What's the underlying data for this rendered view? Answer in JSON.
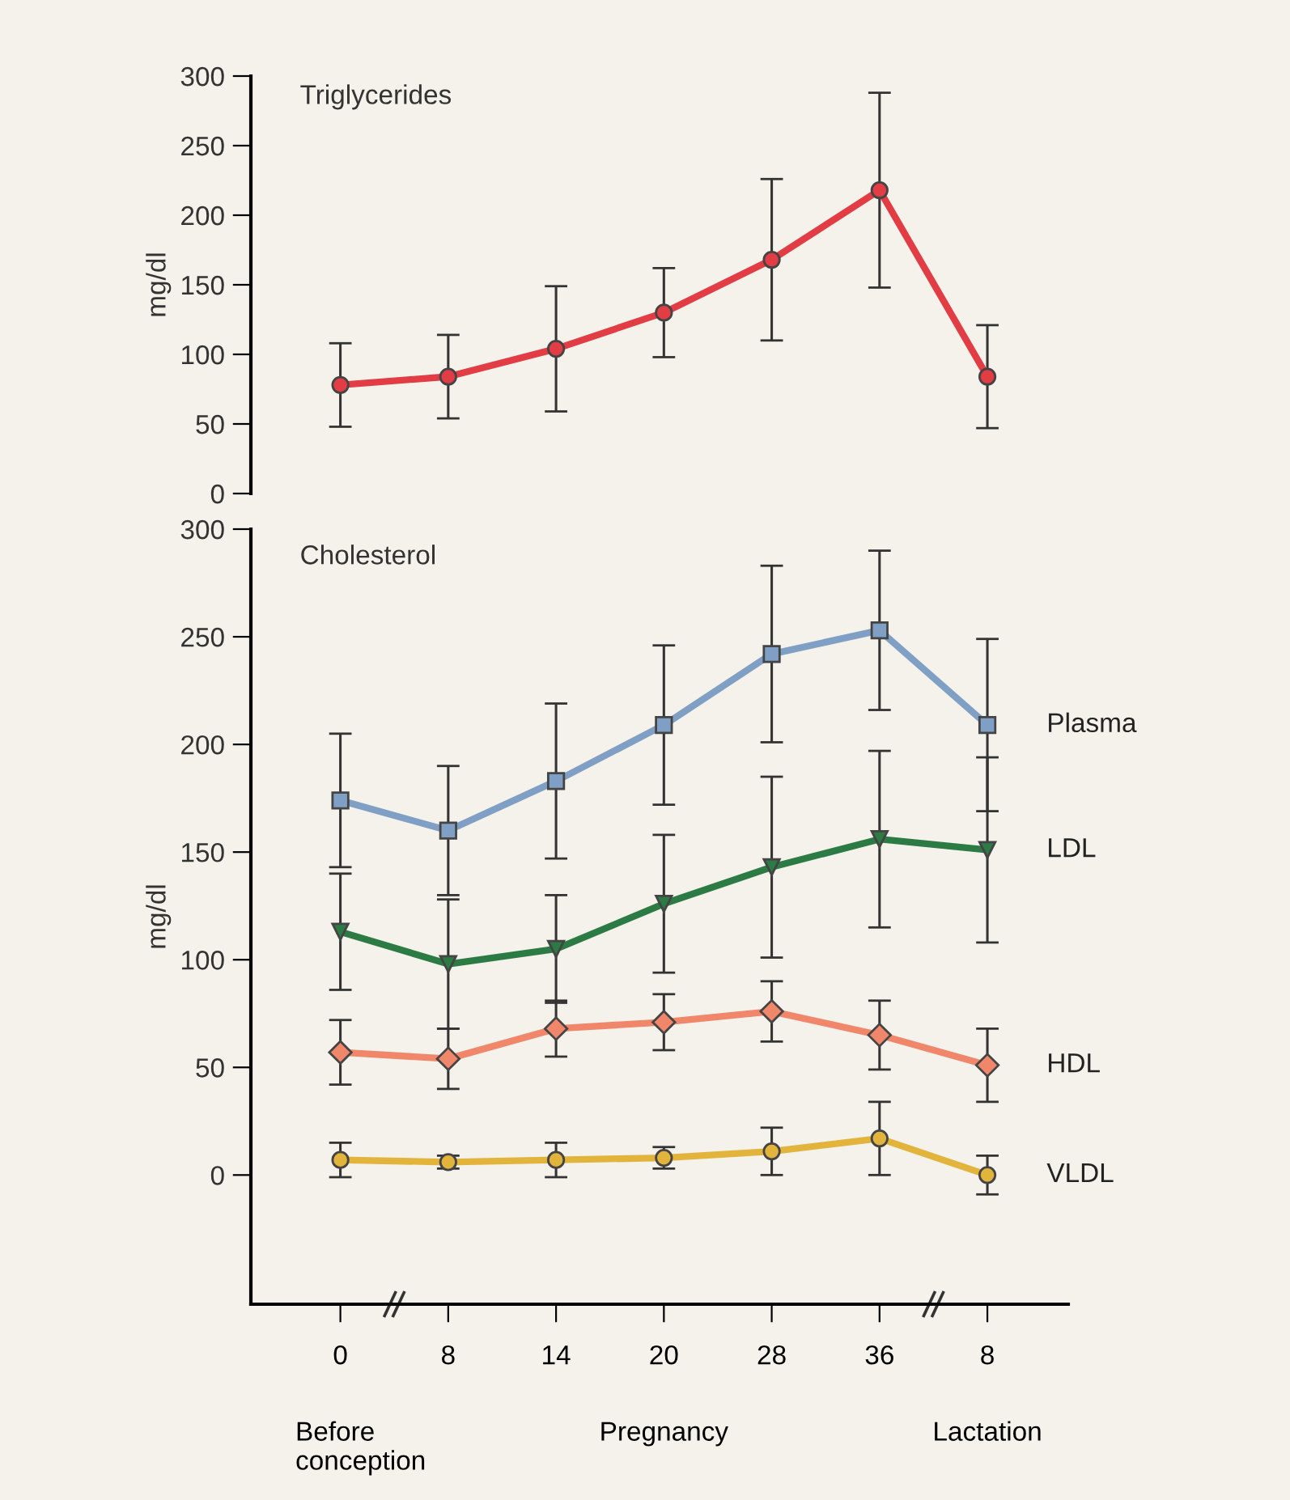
{
  "chart_data": [
    {
      "type": "line",
      "title": "Triglycerides",
      "ylabel": "mg/dl",
      "categories": [
        "0",
        "8",
        "14",
        "20",
        "28",
        "36",
        "8"
      ],
      "ylim": [
        0,
        300
      ],
      "yticks": [
        0,
        50,
        100,
        150,
        200,
        250,
        300
      ],
      "tick_labels": "y",
      "grid": false,
      "legend": false,
      "marker": "circle",
      "series": [
        {
          "color": "#e23c44",
          "values": [
            78,
            84,
            104,
            130,
            168,
            218,
            84
          ],
          "errors": [
            30,
            30,
            45,
            32,
            58,
            70,
            37
          ]
        }
      ]
    },
    {
      "type": "line",
      "title": "Cholesterol",
      "ylabel": "mg/dl",
      "categories": [
        "0",
        "8",
        "14",
        "20",
        "28",
        "36",
        "8"
      ],
      "ylim": [
        -60,
        300
      ],
      "yticks": [
        0,
        50,
        100,
        150,
        200,
        250,
        300
      ],
      "grid": false,
      "legend": false,
      "annotations": [
        "Before conception",
        "Pregnancy",
        "Lactation"
      ],
      "series": [
        {
          "name": "Plasma",
          "color": "#7f9fc4",
          "marker": "square",
          "values": [
            174,
            160,
            183,
            209,
            242,
            253,
            209
          ],
          "errors": [
            31,
            30,
            36,
            37,
            41,
            37,
            40
          ]
        },
        {
          "name": "LDL",
          "color": "#2c7a44",
          "marker": "triangle",
          "values": [
            113,
            98,
            105,
            126,
            143,
            156,
            151
          ],
          "errors": [
            27,
            30,
            25,
            32,
            42,
            41,
            43
          ]
        },
        {
          "name": "HDL",
          "color": "#f0866a",
          "marker": "diamond",
          "values": [
            57,
            54,
            68,
            71,
            76,
            65,
            51
          ],
          "errors": [
            15,
            14,
            13,
            13,
            14,
            16,
            17
          ]
        },
        {
          "name": "VLDL",
          "color": "#e2b43c",
          "marker": "circle",
          "values": [
            7,
            6,
            7,
            8,
            11,
            17,
            0
          ],
          "errors": [
            8,
            3,
            8,
            5,
            11,
            17,
            9
          ]
        }
      ]
    }
  ]
}
